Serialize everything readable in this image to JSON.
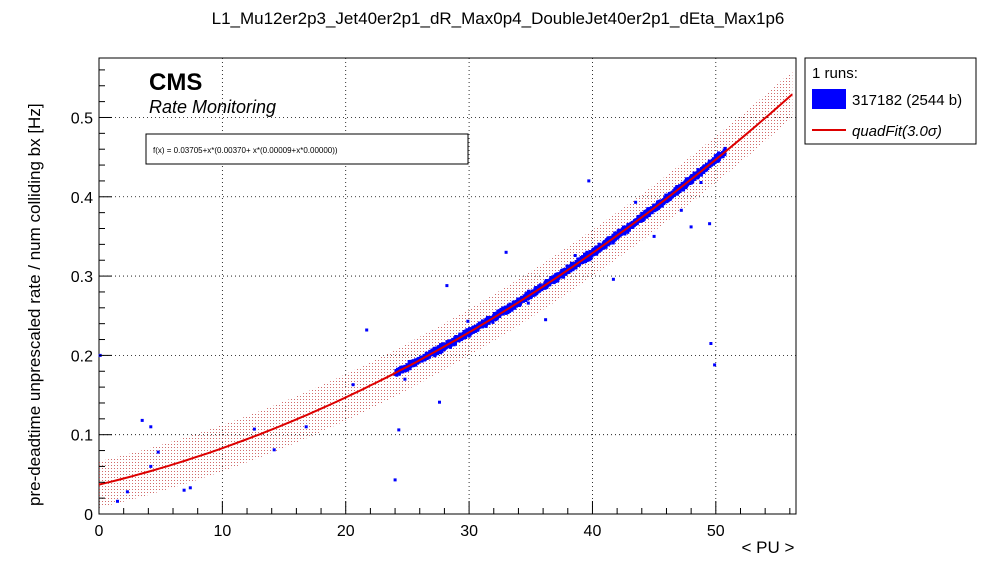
{
  "chart_data": {
    "type": "scatter",
    "title": "L1_Mu12er2p3_Jet40er2p1_dR_Max0p4_DoubleJet40er2p1_dEta_Max1p6",
    "xlabel": "< PU >",
    "ylabel": "pre-deadtime unprescaled rate / num colliding bx [Hz]",
    "xlim": [
      0,
      56.5
    ],
    "ylim": [
      0,
      0.575
    ],
    "x_ticks": [
      0,
      10,
      20,
      30,
      40,
      50
    ],
    "y_ticks": [
      0,
      0.1,
      0.2,
      0.3,
      0.4,
      0.5
    ],
    "x_tick_labels": [
      "0",
      "10",
      "20",
      "30",
      "40",
      "50"
    ],
    "y_tick_labels": [
      "0",
      "0.1",
      "0.2",
      "0.3",
      "0.4",
      "0.5"
    ],
    "grid": true,
    "annotation": {
      "experiment": "CMS",
      "subtitle": "Rate Monitoring",
      "formula": "f(x) = 0.03705+x*(0.00370+ x*(0.00009+x*0.00000))"
    },
    "legend": {
      "header": "1 runs:",
      "placement": "outside-right",
      "entries": [
        {
          "label": "317182 (2544 b)",
          "color": "#0000ff",
          "kind": "box"
        },
        {
          "label": "quadFit(3.0σ)",
          "color": "#dd0000",
          "kind": "line"
        }
      ]
    },
    "fit": {
      "name": "quadFit(3.0σ)",
      "coefficients": [
        0.03705,
        0.0037,
        9e-05,
        0.0
      ],
      "x_range": [
        0,
        56.2
      ],
      "band_sigma": 3.0,
      "band_halfwidth": 0.0293,
      "color": "#dd0000"
    },
    "series": [
      {
        "name": "317182 (2544 b)",
        "color": "#0000ff",
        "outliers": [
          [
            0.1,
            0.2
          ],
          [
            1.5,
            0.016
          ],
          [
            2.3,
            0.028
          ],
          [
            3.5,
            0.118
          ],
          [
            4.2,
            0.11
          ],
          [
            4.2,
            0.06
          ],
          [
            4.8,
            0.078
          ],
          [
            6.9,
            0.03
          ],
          [
            7.4,
            0.033
          ],
          [
            12.6,
            0.107
          ],
          [
            14.2,
            0.081
          ],
          [
            16.8,
            0.11
          ],
          [
            20.6,
            0.163
          ],
          [
            21.7,
            0.232
          ],
          [
            24.0,
            0.043
          ],
          [
            24.3,
            0.106
          ],
          [
            24.8,
            0.17
          ],
          [
            27.6,
            0.141
          ],
          [
            28.2,
            0.288
          ],
          [
            33.0,
            0.33
          ],
          [
            36.2,
            0.245
          ],
          [
            39.7,
            0.42
          ],
          [
            41.7,
            0.296
          ],
          [
            45.0,
            0.35
          ],
          [
            48.0,
            0.362
          ],
          [
            49.5,
            0.366
          ],
          [
            49.6,
            0.215
          ],
          [
            49.9,
            0.188
          ],
          [
            48.8,
            0.418
          ],
          [
            47.2,
            0.383
          ],
          [
            34.8,
            0.266
          ],
          [
            29.9,
            0.243
          ],
          [
            43.5,
            0.393
          ],
          [
            38.6,
            0.326
          ]
        ],
        "main_band": {
          "x_min": 24.0,
          "x_max": 50.8,
          "count": 2510,
          "spread": 0.0028
        }
      }
    ]
  }
}
